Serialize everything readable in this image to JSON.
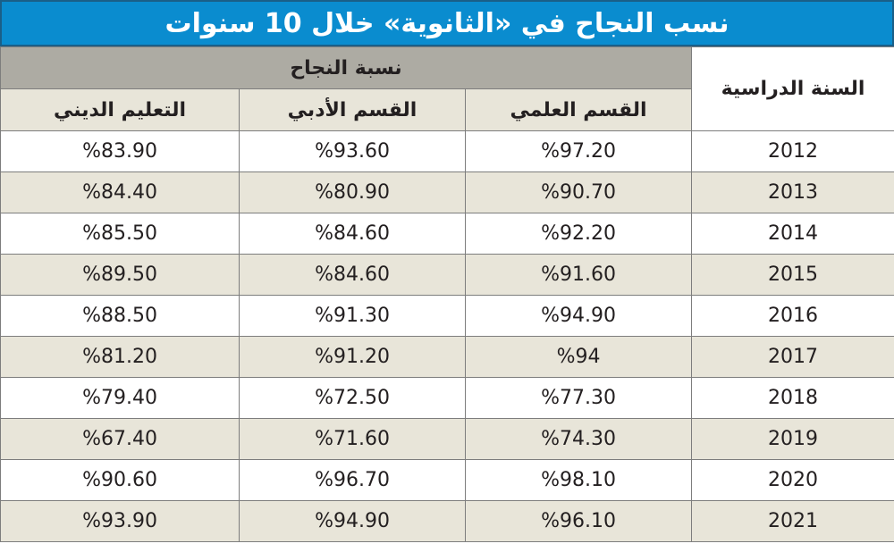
{
  "title": "نسب النجاح في «الثانوية» خلال 10 سنوات",
  "headers": {
    "year": "السنة الدراسية",
    "group": "نسبة النجاح",
    "scientific": "القسم العلمي",
    "literary": "القسم الأدبي",
    "religious": "التعليم الديني"
  },
  "rows": [
    {
      "year": "2012",
      "scientific": "%97.20",
      "literary": "%93.60",
      "religious": "%83.90"
    },
    {
      "year": "2013",
      "scientific": "%90.70",
      "literary": "%80.90",
      "religious": "%84.40"
    },
    {
      "year": "2014",
      "scientific": "%92.20",
      "literary": "%84.60",
      "religious": "%85.50"
    },
    {
      "year": "2015",
      "scientific": "%91.60",
      "literary": "%84.60",
      "religious": "%89.50"
    },
    {
      "year": "2016",
      "scientific": "%94.90",
      "literary": "%91.30",
      "religious": "%88.50"
    },
    {
      "year": "2017",
      "scientific": "%94",
      "literary": "%91.20",
      "religious": "%81.20"
    },
    {
      "year": "2018",
      "scientific": "%77.30",
      "literary": "%72.50",
      "religious": "%79.40"
    },
    {
      "year": "2019",
      "scientific": "%74.30",
      "literary": "%71.60",
      "religious": "%67.40"
    },
    {
      "year": "2020",
      "scientific": "%98.10",
      "literary": "%96.70",
      "religious": "%90.60"
    },
    {
      "year": "2021",
      "scientific": "%96.10",
      "literary": "%94.90",
      "religious": "%93.90"
    }
  ],
  "colors": {
    "title_bg": "#0a8ccf",
    "group_header_bg": "#adaba3",
    "beige_row": "#e8e5d9",
    "white_row": "#ffffff"
  }
}
